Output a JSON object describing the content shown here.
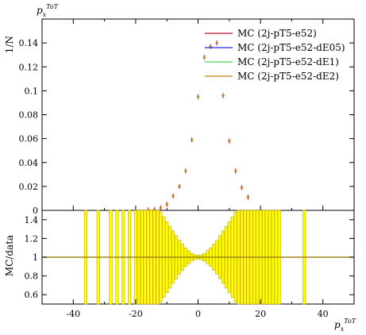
{
  "chart_data": [
    {
      "type": "scatter",
      "title": "",
      "top_label": "p_x^{ToT}",
      "ylabel": "1/N",
      "xlabel": "",
      "xlim": [
        -50,
        50
      ],
      "ylim": [
        0,
        0.16
      ],
      "xticks": [
        -40,
        -20,
        0,
        20,
        40
      ],
      "yticks": [
        0,
        0.02,
        0.04,
        0.06,
        0.08,
        0.1,
        0.12,
        0.14
      ],
      "ytick_labels": [
        "0",
        "0.02",
        "0.04",
        "0.06",
        "0.08",
        "0.1",
        "0.12",
        "0.14"
      ],
      "legend_position": "top-right",
      "series": [
        {
          "name": "MC (2j-pT5-e52)",
          "color": "#b2182b"
        },
        {
          "name": "MC (2j-pT5-e52-dE05)",
          "color": "#1f2be0"
        },
        {
          "name": "MC (2j-pT5-e52-dE1)",
          "color": "#4dd64d"
        },
        {
          "name": "MC (2j-pT5-e52-dE2)",
          "color": "#c8860a"
        }
      ],
      "points": {
        "x": [
          -16,
          -14,
          -12,
          -10,
          -8,
          -6,
          -4,
          -2,
          0,
          2,
          4,
          6,
          8,
          10,
          12,
          14,
          16
        ],
        "y": [
          0.0003,
          0.0008,
          0.002,
          0.005,
          0.012,
          0.02,
          0.033,
          0.059,
          0.095,
          0.128,
          0.137,
          0.14,
          0.096,
          0.058,
          0.033,
          0.019,
          0.011
        ]
      }
    },
    {
      "type": "bar",
      "title": "",
      "ylabel": "MC/data",
      "xlabel": "p_x^{ToT}",
      "xlim": [
        -50,
        50
      ],
      "ylim": [
        0.5,
        1.5
      ],
      "yticks": [
        0.6,
        0.8,
        1.0,
        1.2,
        1.4
      ],
      "ytick_labels": [
        "0.6",
        "0.8",
        "1",
        "1.2",
        "1.4"
      ],
      "ratio_line": 1.0,
      "band_color": "#ffff00",
      "band_edge_color": "#c8a800",
      "ratio_line_color": "#a08a18",
      "bands": [
        {
          "x": -36,
          "lo": 0.5,
          "hi": 1.5
        },
        {
          "x": -32,
          "lo": 0.5,
          "hi": 1.5
        },
        {
          "x": -28,
          "lo": 0.5,
          "hi": 1.5
        },
        {
          "x": -26,
          "lo": 0.5,
          "hi": 1.5
        },
        {
          "x": -24,
          "lo": 0.5,
          "hi": 1.5
        },
        {
          "x": -22,
          "lo": 0.5,
          "hi": 1.5
        },
        {
          "x": -20,
          "lo": 0.5,
          "hi": 1.5
        },
        {
          "x": -19,
          "lo": 0.5,
          "hi": 1.5
        },
        {
          "x": -18,
          "lo": 0.5,
          "hi": 1.5
        },
        {
          "x": -17,
          "lo": 0.5,
          "hi": 1.5
        },
        {
          "x": -16,
          "lo": 0.5,
          "hi": 1.5
        },
        {
          "x": -15,
          "lo": 0.5,
          "hi": 1.5
        },
        {
          "x": -14,
          "lo": 0.5,
          "hi": 1.5
        },
        {
          "x": -13,
          "lo": 0.5,
          "hi": 1.5
        },
        {
          "x": -12,
          "lo": 0.52,
          "hi": 1.48
        },
        {
          "x": -11,
          "lo": 0.57,
          "hi": 1.43
        },
        {
          "x": -10,
          "lo": 0.62,
          "hi": 1.38
        },
        {
          "x": -9,
          "lo": 0.67,
          "hi": 1.33
        },
        {
          "x": -8,
          "lo": 0.72,
          "hi": 1.28
        },
        {
          "x": -7,
          "lo": 0.77,
          "hi": 1.23
        },
        {
          "x": -6,
          "lo": 0.82,
          "hi": 1.18
        },
        {
          "x": -5,
          "lo": 0.86,
          "hi": 1.14
        },
        {
          "x": -4,
          "lo": 0.9,
          "hi": 1.1
        },
        {
          "x": -3,
          "lo": 0.93,
          "hi": 1.07
        },
        {
          "x": -2,
          "lo": 0.96,
          "hi": 1.04
        },
        {
          "x": -1,
          "lo": 0.975,
          "hi": 1.025
        },
        {
          "x": 0,
          "lo": 0.98,
          "hi": 1.02
        },
        {
          "x": 1,
          "lo": 0.975,
          "hi": 1.025
        },
        {
          "x": 2,
          "lo": 0.96,
          "hi": 1.04
        },
        {
          "x": 3,
          "lo": 0.93,
          "hi": 1.07
        },
        {
          "x": 4,
          "lo": 0.9,
          "hi": 1.1
        },
        {
          "x": 5,
          "lo": 0.86,
          "hi": 1.14
        },
        {
          "x": 6,
          "lo": 0.82,
          "hi": 1.18
        },
        {
          "x": 7,
          "lo": 0.77,
          "hi": 1.23
        },
        {
          "x": 8,
          "lo": 0.72,
          "hi": 1.28
        },
        {
          "x": 9,
          "lo": 0.67,
          "hi": 1.33
        },
        {
          "x": 10,
          "lo": 0.62,
          "hi": 1.38
        },
        {
          "x": 11,
          "lo": 0.57,
          "hi": 1.43
        },
        {
          "x": 12,
          "lo": 0.52,
          "hi": 1.48
        },
        {
          "x": 13,
          "lo": 0.5,
          "hi": 1.5
        },
        {
          "x": 14,
          "lo": 0.5,
          "hi": 1.5
        },
        {
          "x": 15,
          "lo": 0.5,
          "hi": 1.5
        },
        {
          "x": 16,
          "lo": 0.5,
          "hi": 1.5
        },
        {
          "x": 17,
          "lo": 0.5,
          "hi": 1.5
        },
        {
          "x": 18,
          "lo": 0.5,
          "hi": 1.5
        },
        {
          "x": 19,
          "lo": 0.5,
          "hi": 1.5
        },
        {
          "x": 20,
          "lo": 0.5,
          "hi": 1.5
        },
        {
          "x": 21,
          "lo": 0.5,
          "hi": 1.5
        },
        {
          "x": 22,
          "lo": 0.5,
          "hi": 1.5
        },
        {
          "x": 23,
          "lo": 0.5,
          "hi": 1.5
        },
        {
          "x": 24,
          "lo": 0.5,
          "hi": 1.5
        },
        {
          "x": 25,
          "lo": 0.5,
          "hi": 1.5
        },
        {
          "x": 26,
          "lo": 0.5,
          "hi": 1.5
        },
        {
          "x": 34,
          "lo": 0.5,
          "hi": 1.5
        }
      ],
      "xticks": [
        -40,
        -20,
        0,
        20,
        40
      ],
      "xtick_labels": [
        "-40",
        "-20",
        "0",
        "20",
        "40"
      ]
    }
  ]
}
